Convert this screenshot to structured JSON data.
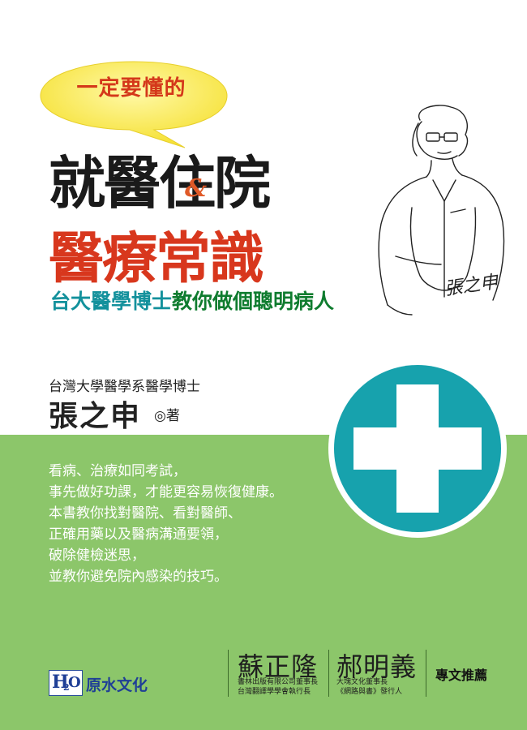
{
  "bubble": {
    "text": "一定要懂的"
  },
  "title": {
    "line1": "就醫住院",
    "ampersand": "&",
    "line2": "醫療常識"
  },
  "subtitle": {
    "part1": "台大醫學博士",
    "part2": "教你做個聰明病人"
  },
  "author": {
    "credential": "台灣大學醫學系醫學博士",
    "name": "張之申",
    "suffix": "◎著"
  },
  "signature": {
    "text": "張之申"
  },
  "description": [
    "看病、治療如同考試，",
    "事先做好功課，才能更容易恢復健康。",
    "本書教你找對醫院、看對醫師、",
    "正確用藥以及醫病溝通要領，",
    "破除健檢迷思，",
    "並教你避免院內感染的技巧。"
  ],
  "recommenders": [
    {
      "name": "蘇正隆",
      "roles": [
        "書林出版有限公司董事長",
        "台灣翻譯學學會執行長"
      ]
    },
    {
      "name": "郝明義",
      "roles": [
        "大塊文化董事長",
        "《網路與書》發行人"
      ]
    }
  ],
  "recommend_label": "專文推薦",
  "publisher": {
    "logo_h": "H",
    "logo_2": "2",
    "logo_o": "O",
    "name": "原水文化"
  },
  "colors": {
    "green_band": "#8cc66a",
    "cross_teal": "#17a2ad",
    "title_red": "#d8371d",
    "bubble_yellow": "#fbeb4a"
  },
  "icons": {
    "cross": "medical-cross-icon",
    "speech": "speech-bubble-icon",
    "doctor": "doctor-sketch"
  }
}
